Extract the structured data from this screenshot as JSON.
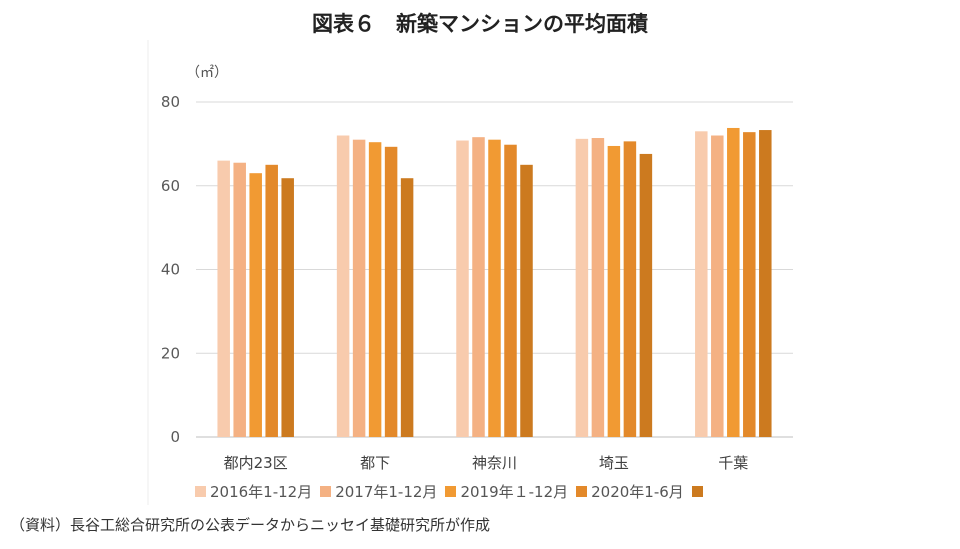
{
  "title": "図表６　新築マンションの平均面積",
  "unit_label": "（㎡）",
  "source_note": "（資料）長谷工総合研究所の公表データからニッセイ基礎研究所が作成",
  "colors": {
    "grid": "#d9d9d9",
    "axis": "#bfbfbf",
    "series": [
      "#f8cbad",
      "#f4b183",
      "#f19a33",
      "#e3892a",
      "#cc7a1f"
    ]
  },
  "chart_data": {
    "type": "bar",
    "categories": [
      "都内23区",
      "都下",
      "神奈川",
      "埼玉",
      "千葉"
    ],
    "series": [
      {
        "name": "2016年1-12月",
        "values": [
          66.0,
          72.0,
          70.8,
          71.2,
          73.0
        ]
      },
      {
        "name": "2017年1-12月",
        "values": [
          65.5,
          71.0,
          71.6,
          71.4,
          72.0
        ]
      },
      {
        "name": "2019年１-12月",
        "values": [
          63.0,
          70.4,
          71.0,
          69.5,
          73.8
        ]
      },
      {
        "name": "2020年1-6月",
        "values": [
          65.0,
          69.3,
          69.8,
          70.6,
          72.8
        ]
      },
      {
        "name": "",
        "values": [
          61.8,
          61.8,
          65.0,
          67.6,
          73.3
        ]
      }
    ],
    "yticks": [
      0,
      20,
      40,
      60,
      80
    ],
    "ylim": [
      0,
      80
    ],
    "grid": true,
    "legend_position": "bottom"
  }
}
